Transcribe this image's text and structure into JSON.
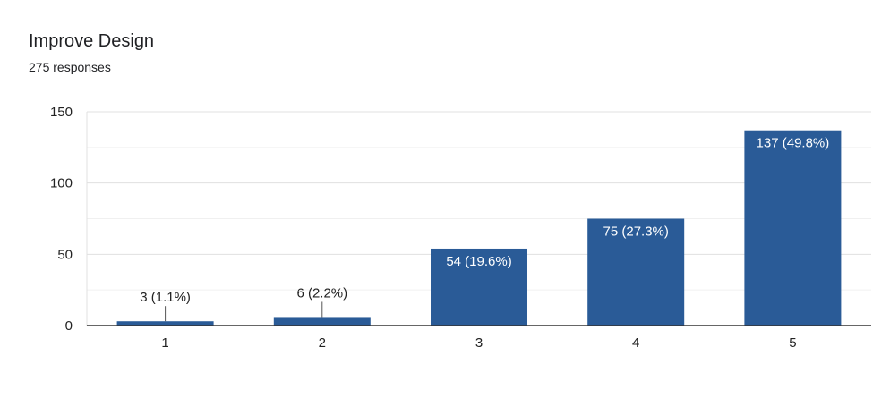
{
  "header": {
    "title": "Improve Design",
    "subtitle": "275 responses"
  },
  "colors": {
    "bar": "#2a5b97",
    "grid": "#e0e0e0",
    "grid_minor": "#f0f0f0",
    "axis": "#333333",
    "label_inside": "#ffffff",
    "label_outside": "#222222",
    "leader": "#555555"
  },
  "chart_data": {
    "type": "bar",
    "title": "Improve Design",
    "subtitle": "275 responses",
    "categories": [
      "1",
      "2",
      "3",
      "4",
      "5"
    ],
    "values": [
      3,
      6,
      54,
      75,
      137
    ],
    "data_labels": [
      "3 (1.1%)",
      "6 (2.2%)",
      "54 (19.6%)",
      "75 (27.3%)",
      "137 (49.8%)"
    ],
    "xlabel": "",
    "ylabel": "",
    "ylim": [
      0,
      150
    ],
    "yticks": [
      "0",
      "50",
      "100",
      "150"
    ],
    "ytick_values": [
      0,
      50,
      100,
      150
    ],
    "grid": true,
    "legend": "none"
  }
}
